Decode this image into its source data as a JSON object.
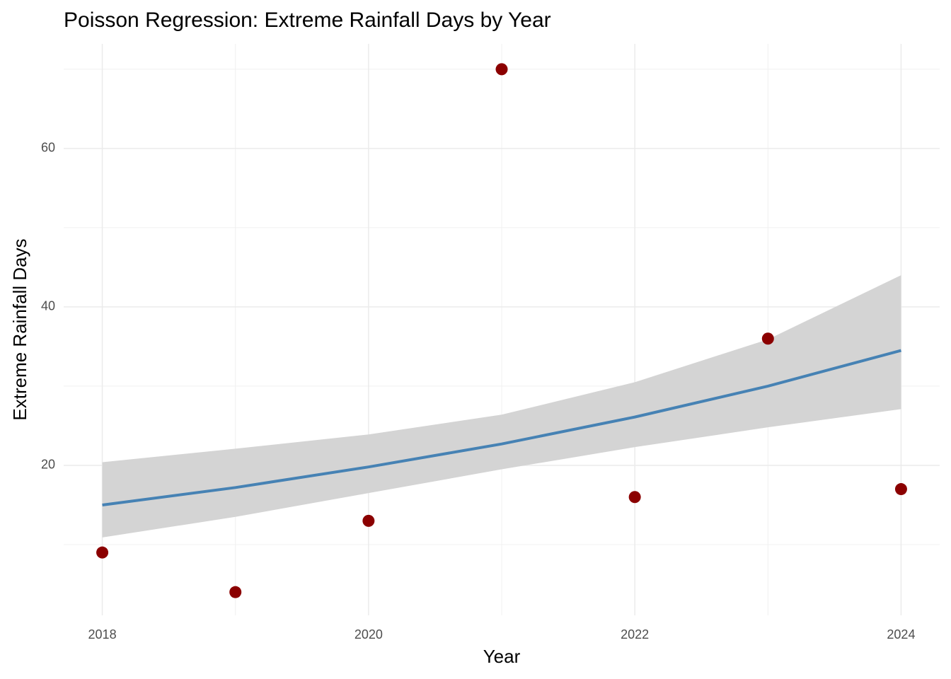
{
  "chart_data": {
    "type": "scatter",
    "title": "Poisson Regression: Extreme Rainfall Days by Year",
    "x_label": "Year",
    "y_label": "Extreme Rainfall Days",
    "x": [
      2018,
      2019,
      2020,
      2021,
      2022,
      2023,
      2024
    ],
    "points": {
      "color": "#8b0000",
      "values": [
        9,
        4,
        13,
        70,
        16,
        36,
        17
      ]
    },
    "fit": {
      "color": "#4682b4",
      "band_color": "#d4d4d4",
      "values": [
        15.0,
        17.2,
        19.8,
        22.7,
        26.1,
        30.0,
        34.5
      ],
      "lower": [
        10.9,
        13.5,
        16.5,
        19.5,
        22.3,
        24.8,
        27.1
      ],
      "upper": [
        20.4,
        22.1,
        23.9,
        26.4,
        30.5,
        35.9,
        44.0
      ]
    },
    "xlim": [
      2017.71,
      2024.29
    ],
    "xticks": [
      2018,
      2020,
      2022,
      2024
    ],
    "minor_xticks": [
      2019,
      2021,
      2023
    ],
    "ylim": [
      1.07,
      73.2
    ],
    "yticks": [
      20,
      40,
      60
    ],
    "minor_yticks": [
      10,
      30,
      50,
      70
    ],
    "grid": true
  }
}
